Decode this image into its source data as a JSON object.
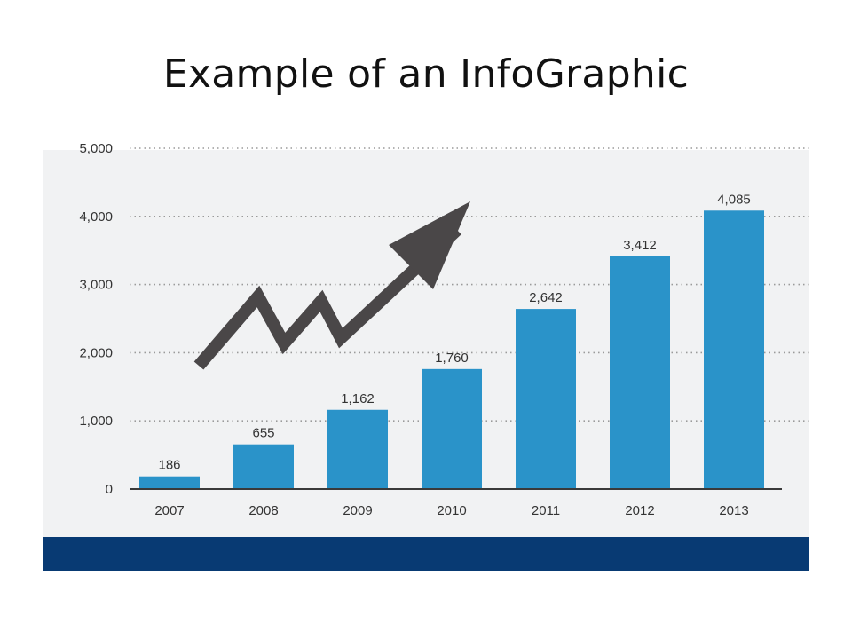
{
  "slide": {
    "title": "Example of an InfoGraphic"
  },
  "colors": {
    "bar": "#2a93c9",
    "arrow": "#4a4748",
    "panel": "#f1f2f3",
    "footer": "#083a73",
    "grid": "#9a9a9a"
  },
  "chart_data": {
    "type": "bar",
    "categories": [
      "2007",
      "2008",
      "2009",
      "2010",
      "2011",
      "2012",
      "2013"
    ],
    "values": [
      186,
      655,
      1162,
      1760,
      2642,
      3412,
      4085
    ],
    "value_labels": [
      "186",
      "655",
      "1,162",
      "1,760",
      "2,642",
      "3,412",
      "4,085"
    ],
    "y_ticks": [
      0,
      1000,
      2000,
      3000,
      4000,
      5000
    ],
    "y_tick_labels": [
      "0",
      "1,000",
      "2,000",
      "3,000",
      "4,000",
      "5,000"
    ],
    "ylim": [
      0,
      5000
    ],
    "grid": "dotted horizontal",
    "legend": "none",
    "decoration": "upward zigzag arrow"
  }
}
